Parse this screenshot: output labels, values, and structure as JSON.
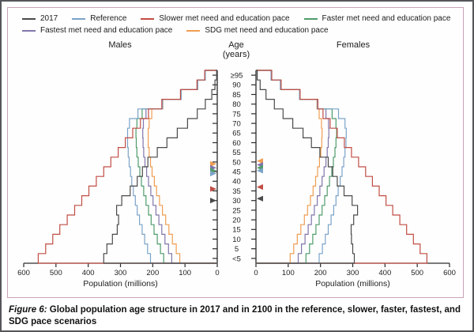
{
  "legend": {
    "items": [
      {
        "label": "2017",
        "color": "#4a4a4a"
      },
      {
        "label": "Reference",
        "color": "#7ba3c8"
      },
      {
        "label": "Slower met need and education pace",
        "color": "#c14d44"
      },
      {
        "label": "Faster met need and education pace",
        "color": "#4f9c6b"
      },
      {
        "label": "Fastest met need and education pace",
        "color": "#8176ab"
      },
      {
        "label": "SDG met need and education pace",
        "color": "#f09d52"
      }
    ]
  },
  "headers": {
    "males": "Males",
    "age_line1": "Age",
    "age_line2": "(years)",
    "females": "Females"
  },
  "caption": {
    "prefix": "Figure 6:",
    "text": " Global population age structure in 2017 and in 2100 in the reference, slower, faster, fastest, and SDG pace scenarios"
  },
  "chart_data": {
    "type": "population_pyramid_step_outline",
    "x_axis_label": "Population (millions)",
    "x_ticks_left": [
      "600",
      "500",
      "400",
      "300",
      "200",
      "100",
      "0"
    ],
    "x_ticks_right": [
      "0",
      "100",
      "200",
      "300",
      "400",
      "500",
      "600"
    ],
    "xlim_millions": [
      0,
      600
    ],
    "age_axis_label": "Age (years)",
    "age_labels_top_to_bottom": [
      "≥95",
      "90",
      "85",
      "80",
      "75",
      "70",
      "65",
      "60",
      "55",
      "50",
      "45",
      "40",
      "35",
      "30",
      "25",
      "20",
      "15",
      "10",
      "5",
      "<5"
    ],
    "age_groups_bottom_to_top": [
      "<5",
      "5",
      "10",
      "15",
      "20",
      "25",
      "30",
      "35",
      "40",
      "45",
      "50",
      "55",
      "60",
      "65",
      "70",
      "75",
      "80",
      "85",
      "90",
      "≥95"
    ],
    "series": [
      {
        "name": "SDG met need and education pace",
        "color": "#f09d52",
        "males": [
          116,
          127,
          139,
          150,
          160,
          170,
          179,
          188,
          195,
          202,
          207,
          211,
          214,
          214,
          211,
          203,
          169,
          112,
          61,
          37
        ],
        "females": [
          106,
          117,
          128,
          139,
          150,
          160,
          169,
          177,
          185,
          191,
          197,
          201,
          204,
          205,
          203,
          196,
          189,
          135,
          76,
          47
        ]
      },
      {
        "name": "Fastest met need and education pace",
        "color": "#8176ab",
        "males": [
          141,
          151,
          162,
          172,
          181,
          190,
          199,
          206,
          213,
          219,
          224,
          228,
          230,
          231,
          229,
          221,
          170,
          112,
          61,
          37
        ],
        "females": [
          131,
          141,
          152,
          162,
          172,
          181,
          190,
          198,
          205,
          211,
          217,
          221,
          224,
          226,
          225,
          217,
          190,
          135,
          76,
          47
        ]
      },
      {
        "name": "Faster met need and education pace",
        "color": "#4f9c6b",
        "males": [
          166,
          176,
          186,
          196,
          205,
          213,
          221,
          228,
          235,
          240,
          245,
          249,
          251,
          252,
          249,
          233,
          170,
          112,
          61,
          37
        ],
        "females": [
          155,
          166,
          176,
          186,
          196,
          205,
          213,
          221,
          228,
          235,
          240,
          245,
          248,
          250,
          248,
          236,
          190,
          135,
          76,
          47
        ]
      },
      {
        "name": "Reference",
        "color": "#7ba3c8",
        "males": [
          207,
          216,
          225,
          233,
          241,
          248,
          254,
          260,
          265,
          269,
          273,
          276,
          278,
          278,
          272,
          246,
          170,
          112,
          61,
          37
        ],
        "females": [
          196,
          206,
          215,
          224,
          233,
          241,
          248,
          255,
          261,
          267,
          272,
          276,
          279,
          280,
          276,
          256,
          190,
          135,
          76,
          47
        ]
      },
      {
        "name": "Slower met need and education pace",
        "color": "#c14d44",
        "males": [
          555,
          532,
          510,
          488,
          465,
          442,
          420,
          398,
          375,
          352,
          330,
          307,
          285,
          262,
          238,
          213,
          172,
          114,
          63,
          39
        ],
        "females": [
          530,
          509,
          488,
          467,
          446,
          424,
          403,
          382,
          361,
          340,
          318,
          296,
          274,
          252,
          230,
          208,
          192,
          137,
          78,
          49
        ]
      },
      {
        "name": "2017",
        "color": "#4a4a4a",
        "males": [
          352,
          342,
          325,
          310,
          306,
          312,
          296,
          270,
          248,
          232,
          215,
          186,
          156,
          124,
          92,
          62,
          37,
          17,
          7,
          2
        ],
        "females": [
          305,
          300,
          296,
          295,
          303,
          315,
          298,
          273,
          252,
          238,
          224,
          198,
          172,
          146,
          114,
          84,
          57,
          31,
          13,
          4
        ]
      }
    ],
    "mean_age_markers": {
      "males": [
        {
          "series": "SDG met need and education pace",
          "age": 51.5
        },
        {
          "series": "Fastest met need and education pace",
          "age": 49.5
        },
        {
          "series": "Faster met need and education pace",
          "age": 48
        },
        {
          "series": "Reference",
          "age": 46.5
        },
        {
          "series": "Slower met need and education pace",
          "age": 38.5
        },
        {
          "series": "2017",
          "age": 32.5
        }
      ],
      "females": [
        {
          "series": "SDG met need and education pace",
          "age": 53
        },
        {
          "series": "Fastest met need and education pace",
          "age": 51
        },
        {
          "series": "Faster met need and education pace",
          "age": 49.5
        },
        {
          "series": "Reference",
          "age": 48
        },
        {
          "series": "Slower met need and education pace",
          "age": 39.5
        },
        {
          "series": "2017",
          "age": 33.5
        }
      ]
    }
  }
}
